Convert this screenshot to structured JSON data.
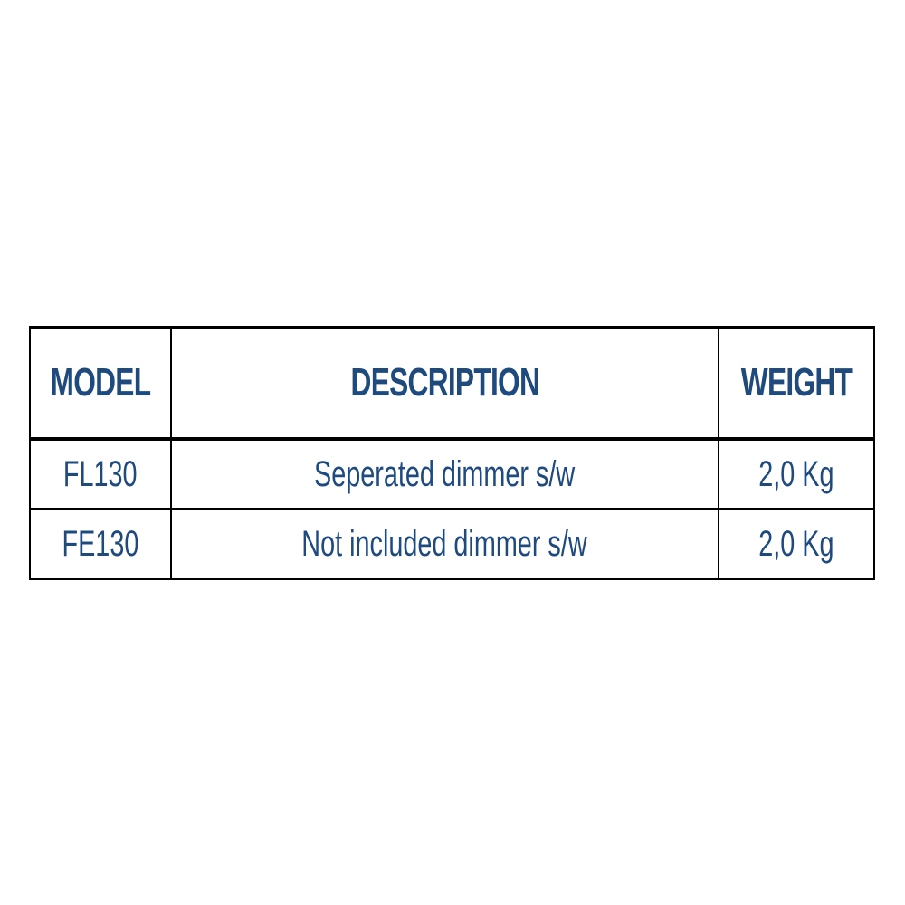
{
  "table": {
    "headers": [
      "MODEL",
      "DESCRIPTION",
      "WEIGHT"
    ],
    "rows": [
      [
        "FL130",
        "Seperated dimmer s/w",
        "2,0 Kg"
      ],
      [
        "FE130",
        "Not included dimmer s/w",
        "2,0 Kg"
      ]
    ]
  },
  "colors": {
    "text": "#1f4a7e",
    "border": "#000000"
  }
}
